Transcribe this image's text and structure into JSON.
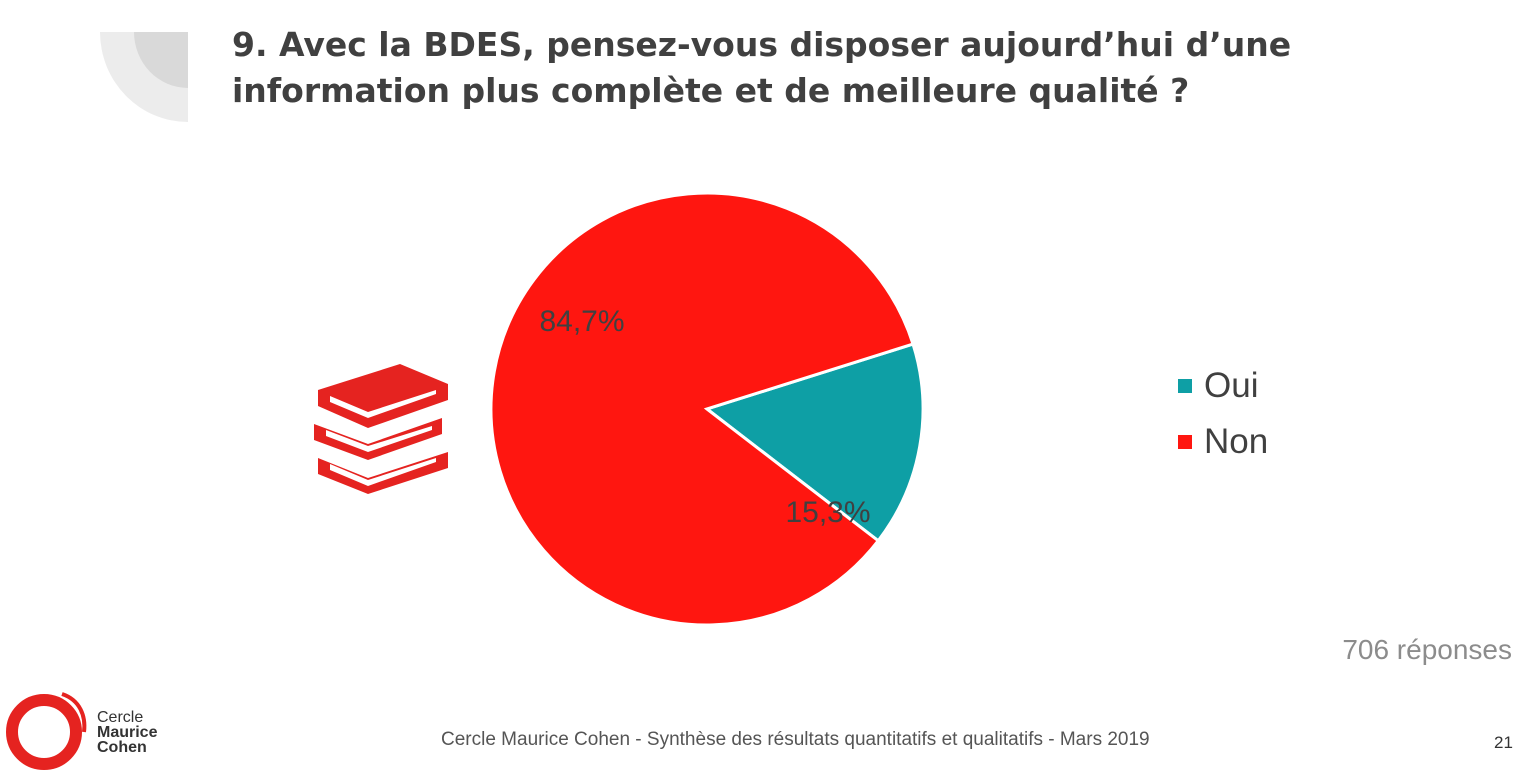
{
  "title": "9. Avec la BDES, pensez-vous disposer aujourd’hui d’une information plus complète et de meilleure qualité ?",
  "chart_data": {
    "type": "pie",
    "categories": [
      "Oui",
      "Non"
    ],
    "values": [
      15.3,
      84.7
    ],
    "data_labels": [
      "15,3%",
      "84,7%"
    ],
    "colors": [
      "#0e9fa5",
      "#ff1610"
    ],
    "legend_position": "right"
  },
  "responses_note": "706 réponses",
  "footer": {
    "text": "Cercle Maurice Cohen - Synthèse des résultats quantitatifs et qualitatifs - Mars 2019",
    "page_number": "21"
  },
  "logo": {
    "line1": "Cercle",
    "line2": "Maurice",
    "line3": "Cohen"
  },
  "icons": [
    "books-icon",
    "logo-ring-icon"
  ]
}
